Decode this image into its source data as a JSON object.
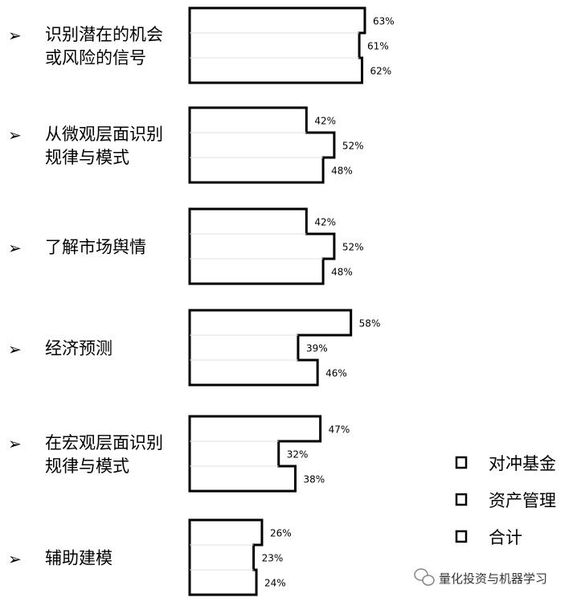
{
  "chart_data": {
    "type": "bar",
    "title": "",
    "xlabel": "",
    "ylabel": "",
    "bullet": "➢",
    "categories": [
      [
        "识别潜在的机会",
        "或风险的信号"
      ],
      [
        "从微观层面识别",
        "规律与模式"
      ],
      [
        "了解市场舆情"
      ],
      [
        "经济预测"
      ],
      [
        "在宏观层面识别",
        "规律与模式"
      ],
      [
        "辅助建模"
      ]
    ],
    "series": [
      {
        "name": "对冲基金",
        "values": [
          63,
          42,
          42,
          58,
          47,
          26
        ]
      },
      {
        "name": "资产管理",
        "values": [
          61,
          52,
          52,
          39,
          32,
          23
        ]
      },
      {
        "name": "合计",
        "values": [
          62,
          48,
          48,
          46,
          38,
          24
        ]
      }
    ],
    "value_suffix": "%",
    "legend_position": "right",
    "colors": {
      "outline": "#000000",
      "fill": "#ffffff"
    }
  },
  "watermark": {
    "text": "量化投资与机器学习",
    "icon": "wechat-icon"
  }
}
